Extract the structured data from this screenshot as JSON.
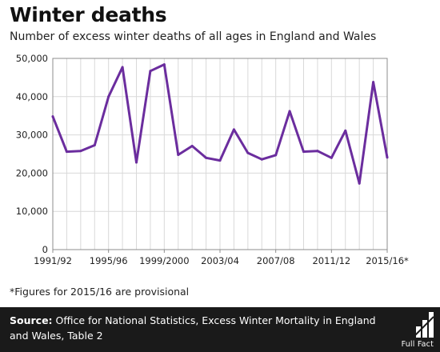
{
  "header": {
    "title": "Winter deaths",
    "subtitle": "Number of excess winter deaths of all ages in England and Wales"
  },
  "note": "*Figures for 2015/16 are provisional",
  "footer": {
    "source_label": "Source:",
    "source_text": "Office for National Statistics, Excess Winter Mortality in England and Wales, Table 2",
    "logo_text": "Full Fact"
  },
  "colors": {
    "line": "#6b2d9e",
    "footer_bg": "#1a1a1a",
    "grid": "#d9d9d9"
  },
  "chart_data": {
    "type": "line",
    "title": "",
    "xlabel": "",
    "ylabel": "",
    "ylim": [
      0,
      50000
    ],
    "yticks": [
      0,
      10000,
      20000,
      30000,
      40000,
      50000
    ],
    "ytick_labels": [
      "0",
      "10,000",
      "20,000",
      "30,000",
      "40,000",
      "50,000"
    ],
    "grid": true,
    "x_tick_labels": [
      "1991/92",
      "1995/96",
      "1999/2000",
      "2003/04",
      "2007/08",
      "2011/12",
      "2015/16*"
    ],
    "categories": [
      "1991/92",
      "1992/93",
      "1993/94",
      "1994/95",
      "1995/96",
      "1996/97",
      "1997/98",
      "1998/99",
      "1999/2000",
      "2000/01",
      "2001/02",
      "2002/03",
      "2003/04",
      "2004/05",
      "2005/06",
      "2006/07",
      "2007/08",
      "2008/09",
      "2009/10",
      "2010/11",
      "2011/12",
      "2012/13",
      "2013/14",
      "2014/15",
      "2015/16*"
    ],
    "values": [
      34800,
      25600,
      25800,
      27300,
      40000,
      47700,
      22800,
      46700,
      48400,
      24800,
      27100,
      24000,
      23300,
      31400,
      25300,
      23600,
      24700,
      36200,
      25600,
      25800,
      24000,
      31100,
      17300,
      43800,
      24100
    ]
  }
}
